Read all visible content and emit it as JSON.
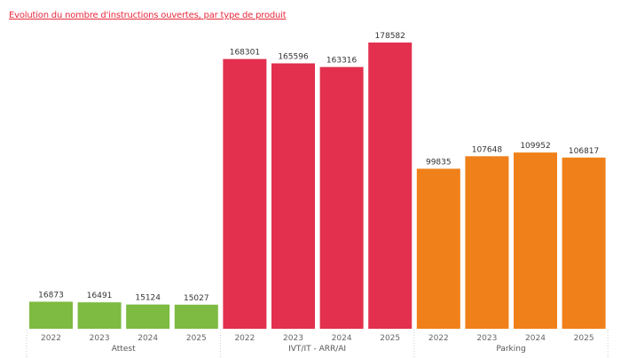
{
  "chart_data": {
    "type": "bar",
    "title": "Evolution du nombre d'instructions ouvertes, par type de produit",
    "xlabel": "",
    "ylabel": "",
    "ylim": [
      0,
      178582
    ],
    "grid": false,
    "groups": [
      {
        "name": "Attest",
        "color": "#7dbb42",
        "categories": [
          "2022",
          "2023",
          "2024",
          "2025"
        ],
        "values": [
          16873,
          16491,
          15124,
          15027
        ]
      },
      {
        "name": "IVT/IT - ARR/AI",
        "color": "#e2304e",
        "categories": [
          "2022",
          "2023",
          "2024",
          "2025"
        ],
        "values": [
          168301,
          165596,
          163316,
          178582
        ]
      },
      {
        "name": "Parking",
        "color": "#f08019",
        "categories": [
          "2022",
          "2023",
          "2024",
          "2025"
        ],
        "values": [
          99835,
          107648,
          109952,
          106817
        ]
      }
    ]
  }
}
